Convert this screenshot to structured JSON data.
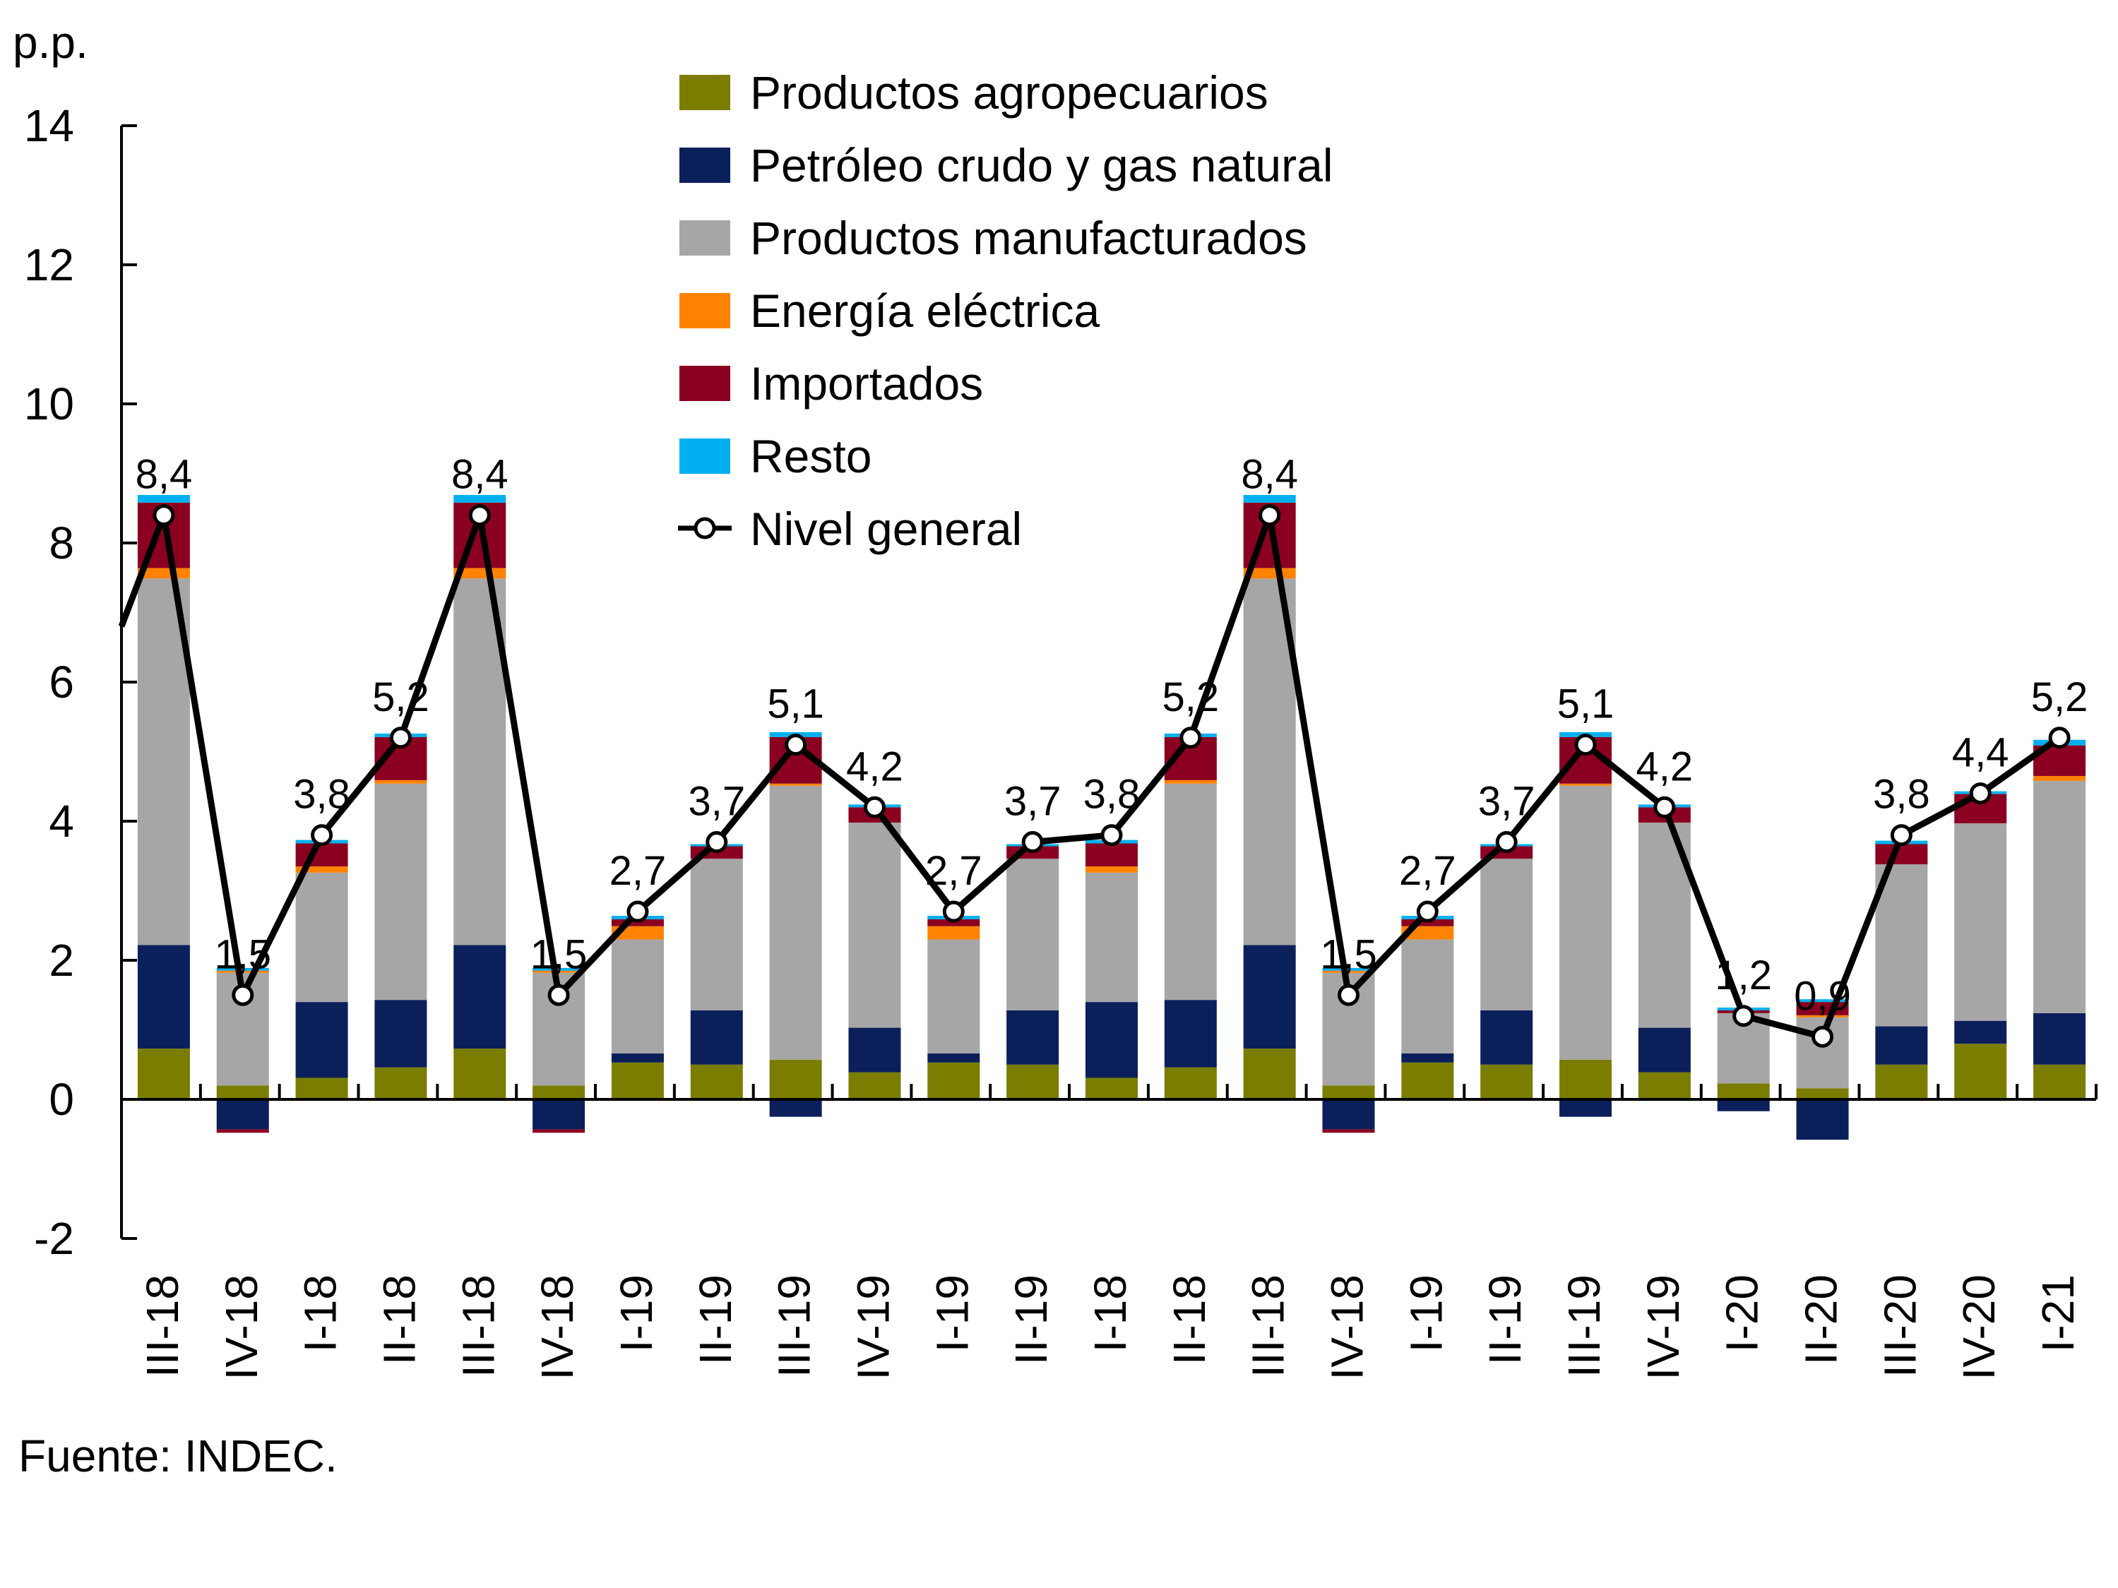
{
  "chart_data": {
    "type": "bar",
    "stacked": true,
    "title": "",
    "ylabel": "p.p.",
    "xlabel": "",
    "ylim": [
      -2,
      14
    ],
    "yticks": [
      -2,
      0,
      2,
      4,
      6,
      8,
      10,
      12,
      14
    ],
    "grid": false,
    "legend_position": "top-center",
    "categories": [
      "III-18",
      "IV-18",
      "I-18",
      "II-18",
      "III-18",
      "IV-18",
      "I-19",
      "II-19",
      "III-19",
      "IV-19",
      "I-19",
      "II-19",
      "I-18",
      "II-18",
      "III-18",
      "IV-18",
      "I-19",
      "II-19",
      "III-19",
      "IV-19",
      "I-20",
      "II-20",
      "III-20",
      "IV-20",
      "I-21"
    ],
    "series": [
      {
        "name": "Productos agropecuarios",
        "color": "#7a7d00",
        "values": [
          0.73,
          0.2,
          0.31,
          0.46,
          0.73,
          0.2,
          0.53,
          0.5,
          0.57,
          0.39,
          0.53,
          0.5,
          0.31,
          0.46,
          0.73,
          0.2,
          0.53,
          0.5,
          0.57,
          0.39,
          0.23,
          0.16,
          0.5,
          0.8,
          0.5
        ]
      },
      {
        "name": "Petróleo crudo y gas natural",
        "color": "#0b1f5b",
        "values": [
          1.49,
          -0.43,
          1.09,
          0.97,
          1.49,
          -0.43,
          0.13,
          0.78,
          -0.25,
          0.64,
          0.13,
          0.78,
          1.09,
          0.97,
          1.49,
          -0.43,
          0.13,
          0.78,
          -0.25,
          0.64,
          -0.17,
          -0.58,
          0.55,
          0.33,
          0.74
        ]
      },
      {
        "name": "Productos manufacturados",
        "color": "#a6a6a6",
        "values": [
          5.27,
          1.62,
          1.86,
          3.11,
          5.27,
          1.62,
          1.64,
          2.18,
          3.94,
          2.95,
          1.64,
          2.18,
          1.86,
          3.11,
          5.27,
          1.62,
          1.64,
          2.18,
          3.94,
          2.95,
          1.01,
          1.02,
          2.33,
          2.84,
          3.34
        ]
      },
      {
        "name": "Energía eléctrica",
        "color": "#ff8200",
        "values": [
          0.15,
          0.03,
          0.09,
          0.05,
          0.15,
          0.03,
          0.19,
          0.0,
          0.03,
          0.0,
          0.19,
          0.0,
          0.09,
          0.05,
          0.15,
          0.03,
          0.19,
          0.0,
          0.03,
          0.0,
          0.0,
          0.03,
          0.0,
          0.0,
          0.07
        ]
      },
      {
        "name": "Importados",
        "color": "#8b0020",
        "values": [
          0.94,
          -0.05,
          0.33,
          0.62,
          0.94,
          -0.05,
          0.1,
          0.18,
          0.67,
          0.22,
          0.1,
          0.18,
          0.33,
          0.62,
          0.94,
          -0.05,
          0.1,
          0.18,
          0.67,
          0.22,
          0.04,
          0.19,
          0.29,
          0.42,
          0.44
        ]
      },
      {
        "name": "Resto",
        "color": "#00b0f0",
        "values": [
          0.11,
          0.04,
          0.05,
          0.05,
          0.11,
          0.04,
          0.05,
          0.03,
          0.07,
          0.04,
          0.05,
          0.03,
          0.05,
          0.05,
          0.11,
          0.04,
          0.05,
          0.03,
          0.07,
          0.04,
          0.04,
          0.04,
          0.05,
          0.04,
          0.08
        ]
      }
    ],
    "line": {
      "name": "Nivel general",
      "color": "#000000",
      "values": [
        8.4,
        1.5,
        3.8,
        5.2,
        8.4,
        1.5,
        2.7,
        3.7,
        5.1,
        4.2,
        2.7,
        3.7,
        3.8,
        5.2,
        8.4,
        1.5,
        2.7,
        3.7,
        5.1,
        4.2,
        1.2,
        0.9,
        3.8,
        4.4,
        5.2
      ],
      "labels": [
        "8,4",
        "1,5",
        "3,8",
        "5,2",
        "8,4",
        "1,5",
        "2,7",
        "3,7",
        "5,1",
        "4,2",
        "2,7",
        "3,7",
        "3,8",
        "5,2",
        "8,4",
        "1,5",
        "2,7",
        "3,7",
        "5,1",
        "4,2",
        "1,2",
        "0,9",
        "3,8",
        "4,4",
        "5,2"
      ],
      "leading_value": 6.8
    },
    "ytick_labels": [
      "-2",
      "0",
      "2",
      "4",
      "6",
      "8",
      "10",
      "12",
      "14"
    ]
  },
  "legend": {
    "items": [
      {
        "label": "Productos agropecuarios",
        "color": "#7a7d00",
        "kind": "box"
      },
      {
        "label": "Petróleo crudo y gas natural",
        "color": "#0b1f5b",
        "kind": "box"
      },
      {
        "label": "Productos manufacturados",
        "color": "#a6a6a6",
        "kind": "box"
      },
      {
        "label": "Energía eléctrica",
        "color": "#ff8200",
        "kind": "box"
      },
      {
        "label": "Importados",
        "color": "#8b0020",
        "kind": "box"
      },
      {
        "label": "Resto",
        "color": "#00b0f0",
        "kind": "box"
      },
      {
        "label": "Nivel general",
        "color": "#000000",
        "kind": "line-marker"
      }
    ]
  },
  "unit_label": "p.p.",
  "source": "Fuente: INDEC."
}
